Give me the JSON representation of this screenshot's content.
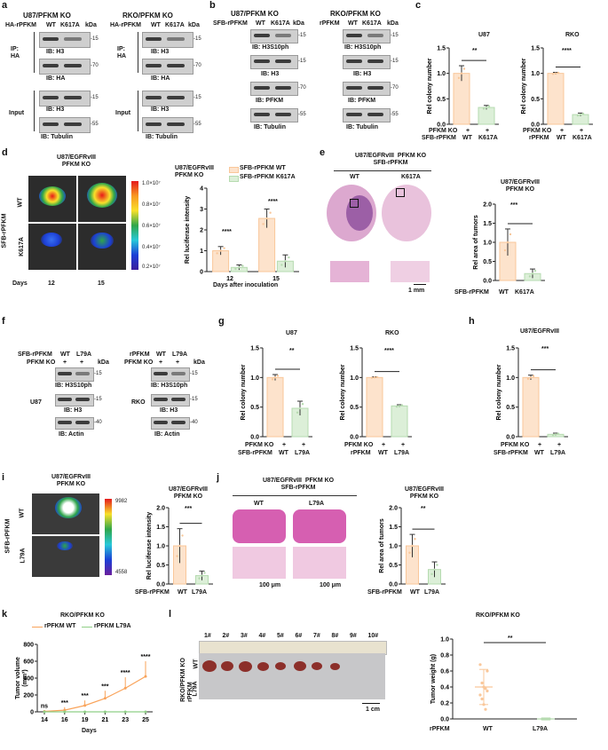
{
  "a": {
    "panel": "a",
    "left": {
      "title": "U87/PFKM KO",
      "row_label": "HA-rPFKM",
      "lanes": [
        "WT",
        "K617A"
      ],
      "unit": "kDa",
      "ip_label": "IP:\nHA",
      "input_label": "Input",
      "blots": [
        {
          "ib": "IB: H3",
          "kda": "-15"
        },
        {
          "ib": "IB: HA",
          "kda": "-70"
        },
        {
          "ib": "IB: H3",
          "kda": "-15"
        },
        {
          "ib": "IB: Tubulin",
          "kda": "-55"
        }
      ]
    },
    "right": {
      "title": "RKO/PFKM KO",
      "row_label": "HA-rPFKM",
      "lanes": [
        "WT",
        "K617A"
      ],
      "unit": "kDa",
      "ip_label": "IP:\nHA",
      "input_label": "Input",
      "blots": [
        {
          "ib": "IB: H3",
          "kda": "-15"
        },
        {
          "ib": "IB: HA",
          "kda": "-70"
        },
        {
          "ib": "IB: H3",
          "kda": "-15"
        },
        {
          "ib": "IB: Tubulin",
          "kda": "-55"
        }
      ]
    }
  },
  "b": {
    "panel": "b",
    "left": {
      "title": "U87/PFKM KO",
      "row_label": "SFB-rPFKM",
      "lanes": [
        "WT",
        "K617A"
      ],
      "unit": "kDa",
      "blots": [
        {
          "ib": "IB: H3S10ph",
          "kda": "-15"
        },
        {
          "ib": "IB: H3",
          "kda": "-15"
        },
        {
          "ib": "IB: PFKM",
          "kda": "-70"
        },
        {
          "ib": "IB: Tubulin",
          "kda": "-55"
        }
      ]
    },
    "right": {
      "title": "RKO/PFKM KO",
      "row_label": "rPFKM",
      "lanes": [
        "WT",
        "K617A"
      ],
      "unit": "kDa",
      "blots": [
        {
          "ib": "IB: H3S10ph",
          "kda": "-15"
        },
        {
          "ib": "IB: H3",
          "kda": "-15"
        },
        {
          "ib": "IB: PFKM",
          "kda": "-70"
        },
        {
          "ib": "IB: Tubulin",
          "kda": "-55"
        }
      ]
    }
  },
  "c": {
    "panel": "c",
    "row1_label": "PFKM KO",
    "row1_values": [
      "+",
      "+"
    ],
    "charts": [
      {
        "title": "U87",
        "row2_label": "SFB-rPFKM",
        "categories": [
          "WT",
          "K617A"
        ],
        "sig": "**"
      },
      {
        "title": "RKO",
        "row2_label": "rPFKM",
        "categories": [
          "WT",
          "K617A"
        ],
        "sig": "****"
      }
    ]
  },
  "d": {
    "panel": "d",
    "title": "U87/EGFRvIII\nPFKM KO",
    "group_label": "SFB-rPFKM",
    "rows": [
      "WT",
      "K617A"
    ],
    "days_label": "Days",
    "days": [
      "12",
      "15"
    ],
    "colorbar": [
      "1.0×10⁷",
      "0.8×10⁷",
      "0.6×10⁷",
      "0.4×10⁷",
      "0.2×10⁷"
    ],
    "chart_title": "U87/EGFRvIII\nPFKM KO",
    "legend": [
      "SFB-rPFKM WT",
      "SFB-rPFKM K617A"
    ],
    "xlabel": "Days after inoculation",
    "sig": [
      "****",
      "****"
    ]
  },
  "e": {
    "panel": "e",
    "title": "U87/EGFRvIII  PFKM KO\nSFB-rPFKM",
    "lanes": [
      "WT",
      "K617A"
    ],
    "scale": "1 mm",
    "chart_title": "U87/EGFRvIII\nPFKM KO",
    "row_label": "SFB-rPFKM",
    "categories": [
      "WT",
      "K617A"
    ],
    "sig": "***"
  },
  "f": {
    "panel": "f",
    "left": {
      "row1": "SFB-rPFKM",
      "row2": "PFKM KO",
      "lanes": [
        "WT",
        "L79A"
      ],
      "plus": [
        "+",
        "+"
      ],
      "unit": "kDa",
      "cell": "U87",
      "blots": [
        {
          "ib": "IB: H3S10ph",
          "kda": "-15"
        },
        {
          "ib": "IB: H3",
          "kda": "-15"
        },
        {
          "ib": "IB: Actin",
          "kda": "-40"
        }
      ]
    },
    "right": {
      "row1": "rPFKM",
      "row2": "PFKM KO",
      "lanes": [
        "WT",
        "L79A"
      ],
      "plus": [
        "+",
        "+"
      ],
      "unit": "kDa",
      "cell": "RKO",
      "blots": [
        {
          "ib": "IB: H3S10ph",
          "kda": "-15"
        },
        {
          "ib": "IB: H3",
          "kda": "-15"
        },
        {
          "ib": "IB: Actin",
          "kda": "-40"
        }
      ]
    }
  },
  "g": {
    "panel": "g",
    "row1_label": "PFKM KO",
    "row1_values": [
      "+",
      "+"
    ],
    "charts": [
      {
        "title": "U87",
        "row2_label": "SFB-rPFKM",
        "categories": [
          "WT",
          "L79A"
        ],
        "sig": "**"
      },
      {
        "title": "RKO",
        "row2_label": "rPFKM",
        "categories": [
          "WT",
          "L79A"
        ],
        "sig": "****"
      }
    ]
  },
  "h": {
    "panel": "h",
    "title": "U87/EGFRvIII",
    "row1_label": "PFKM KO",
    "row1_values": [
      "+",
      "+"
    ],
    "row2_label": "SFB-rPFKM",
    "categories": [
      "WT",
      "L79A"
    ],
    "sig": "***"
  },
  "i": {
    "panel": "i",
    "title": "U87/EGFRvIII\nPFKM KO",
    "group_label": "SFB-rPFKM",
    "rows": [
      "WT",
      "L79A"
    ],
    "colorbar_max": "9982",
    "colorbar_min": "4558",
    "chart_title": "U87/EGFRvIII\nPFKM KO",
    "row_label": "SFB-rPFKM",
    "categories": [
      "WT",
      "L79A"
    ],
    "sig": "***"
  },
  "j": {
    "panel": "j",
    "title": "U87/EGFRvIII  PFKM KO\nSFB-rPFKM",
    "lanes": [
      "WT",
      "L79A"
    ],
    "scales": [
      "100 μm",
      "100 μm"
    ],
    "chart_title": "U87/EGFRvIII\nPFKM KO",
    "row_label": "SFB-rPFKM",
    "categories": [
      "WT",
      "L79A"
    ],
    "sig": "**"
  },
  "k": {
    "panel": "k",
    "title": "RKO/PFKM KO",
    "legend": [
      "rPFKM WT",
      "rPFKM L79A"
    ],
    "xlabel": "Days",
    "sig": [
      "ns",
      "***",
      "***",
      "***",
      "****",
      "****"
    ]
  },
  "l": {
    "panel": "l",
    "numbers": [
      "1#",
      "2#",
      "3#",
      "4#",
      "5#",
      "6#",
      "7#",
      "8#",
      "9#",
      "10#"
    ],
    "side_label": "RKO/PFKM KO\nrPFKM",
    "rows": [
      "WT",
      "L79A"
    ],
    "scale": "1 cm",
    "chart_title": "RKO/PFKM KO",
    "row_label": "rPFKM",
    "categories": [
      "WT",
      "L79A"
    ],
    "sig": "**"
  },
  "colors": {
    "wt": "#f9c79a",
    "wt_fill": "#fde3cc",
    "mut": "#b6dbb0",
    "mut_fill": "#dcefd8",
    "err": "#333333"
  },
  "chart_data": [
    {
      "id": "c-U87",
      "type": "bar",
      "categories": [
        "WT",
        "K617A"
      ],
      "values": [
        1.0,
        0.33
      ],
      "errors": [
        0.15,
        0.04
      ],
      "ylabel": "Rel colony number",
      "ylim": [
        0,
        1.5
      ],
      "yticks": [
        "0.0",
        "0.5",
        "1.0",
        "1.5"
      ]
    },
    {
      "id": "c-RKO",
      "type": "bar",
      "categories": [
        "WT",
        "K617A"
      ],
      "values": [
        1.0,
        0.19
      ],
      "errors": [
        0.02,
        0.03
      ],
      "ylabel": "Rel colony number",
      "ylim": [
        0,
        1.5
      ],
      "yticks": [
        "0.0",
        "0.5",
        "1.0",
        "1.5"
      ]
    },
    {
      "id": "d-lucif",
      "type": "bar",
      "categories": [
        "12",
        "15"
      ],
      "series": [
        {
          "name": "SFB-rPFKM WT",
          "values": [
            1.0,
            2.55
          ]
        },
        {
          "name": "SFB-rPFKM K617A",
          "values": [
            0.2,
            0.5
          ]
        }
      ],
      "errors": [
        [
          0.2,
          0.45
        ],
        [
          0.12,
          0.3
        ]
      ],
      "ylabel": "Rel luciferase intensity",
      "xlabel": "Days after inoculation",
      "ylim": [
        0,
        4
      ],
      "yticks": [
        "0",
        "1",
        "2",
        "3",
        "4"
      ]
    },
    {
      "id": "e-area",
      "type": "bar",
      "categories": [
        "WT",
        "K617A"
      ],
      "values": [
        1.0,
        0.18
      ],
      "errors": [
        0.35,
        0.12
      ],
      "ylabel": "Rel area of tumors",
      "ylim": [
        0,
        2.0
      ],
      "yticks": [
        "0.0",
        "0.5",
        "1.0",
        "1.5",
        "2.0"
      ]
    },
    {
      "id": "g-U87",
      "type": "bar",
      "categories": [
        "WT",
        "L79A"
      ],
      "values": [
        1.0,
        0.48
      ],
      "errors": [
        0.05,
        0.12
      ],
      "ylabel": "Rel colony number",
      "ylim": [
        0,
        1.5
      ],
      "yticks": [
        "0.0",
        "0.5",
        "1.0",
        "1.5"
      ]
    },
    {
      "id": "g-RKO",
      "type": "bar",
      "categories": [
        "WT",
        "L79A"
      ],
      "values": [
        1.0,
        0.52
      ],
      "errors": [
        0.01,
        0.02
      ],
      "ylabel": "Rel colony number",
      "ylim": [
        0,
        1.5
      ],
      "yticks": [
        "0.0",
        "0.5",
        "1.0",
        "1.5"
      ]
    },
    {
      "id": "h-U87EGFR",
      "type": "bar",
      "categories": [
        "WT",
        "L79A"
      ],
      "values": [
        1.0,
        0.04
      ],
      "errors": [
        0.04,
        0.02
      ],
      "ylabel": "Rel colony number",
      "ylim": [
        0,
        1.5
      ],
      "yticks": [
        "0.0",
        "0.5",
        "1.0",
        "1.5"
      ]
    },
    {
      "id": "i-lucif",
      "type": "bar",
      "categories": [
        "WT",
        "L79A"
      ],
      "values": [
        1.0,
        0.22
      ],
      "errors": [
        0.45,
        0.12
      ],
      "ylabel": "Rel luciferase intensity",
      "ylim": [
        0,
        2.0
      ],
      "yticks": [
        "0.0",
        "0.5",
        "1.0",
        "1.5",
        "2.0"
      ]
    },
    {
      "id": "j-area",
      "type": "bar",
      "categories": [
        "WT",
        "L79A"
      ],
      "values": [
        1.0,
        0.38
      ],
      "errors": [
        0.3,
        0.2
      ],
      "ylabel": "Rel area of tumors",
      "ylim": [
        0,
        2.0
      ],
      "yticks": [
        "0.0",
        "0.5",
        "1.0",
        "1.5",
        "2.0"
      ]
    },
    {
      "id": "k-volume",
      "type": "line",
      "x": [
        14,
        16,
        19,
        21,
        23,
        25
      ],
      "series": [
        {
          "name": "rPFKM WT",
          "values": [
            5,
            20,
            75,
            160,
            280,
            420
          ]
        },
        {
          "name": "rPFKM L79A",
          "values": [
            0,
            0,
            0,
            0,
            0,
            0
          ]
        }
      ],
      "errors": [
        12,
        35,
        60,
        90,
        130,
        180
      ],
      "xticks": [
        "14",
        "16",
        "19",
        "21",
        "23",
        "25"
      ],
      "ylabel": "Tumor volume\n(mm³)",
      "xlabel": "Days",
      "ylim": [
        0,
        800
      ],
      "yticks": [
        "0",
        "200",
        "400",
        "600",
        "800"
      ]
    },
    {
      "id": "l-weight",
      "type": "scatter",
      "categories": [
        "WT",
        "L79A"
      ],
      "values": [
        0.4,
        0.0
      ],
      "errors": [
        0.22,
        0.0
      ],
      "points": [
        [
          0.68,
          0.45,
          0.4,
          0.38,
          0.35,
          0.3,
          0.25,
          0.18,
          0.12,
          0.6
        ],
        [
          0,
          0,
          0,
          0,
          0,
          0,
          0,
          0,
          0,
          0
        ]
      ],
      "ylabel": "Tumor weight (g)",
      "ylim": [
        0,
        1.0
      ],
      "yticks": [
        "0.0",
        "0.2",
        "0.4",
        "0.6",
        "0.8",
        "1.0"
      ]
    }
  ]
}
